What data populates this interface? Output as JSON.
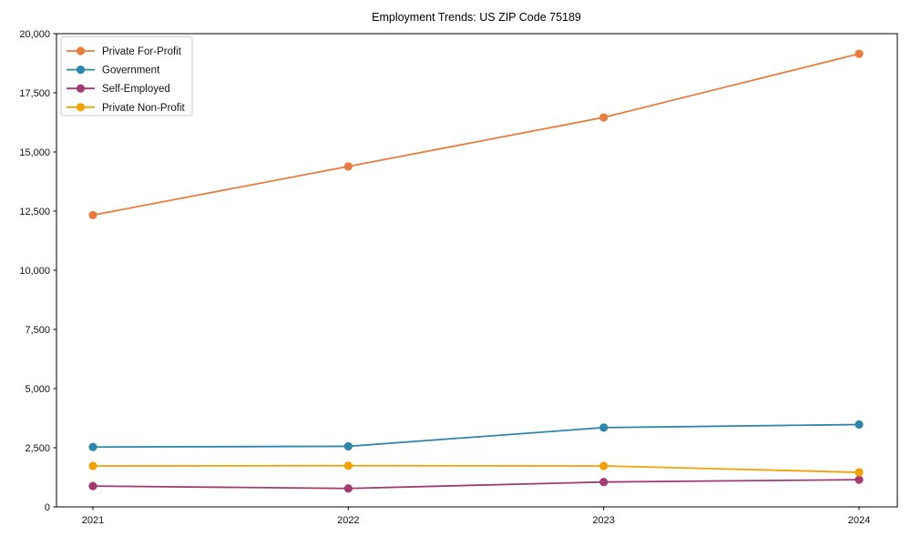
{
  "figure": {
    "background": "#ffffff",
    "spine_color": "#000000",
    "tick_label_color": "#111111"
  },
  "chart_data": {
    "type": "line",
    "title": "Employment Trends: US ZIP Code 75189",
    "xlabel": "",
    "ylabel": "",
    "x": [
      "2021",
      "2022",
      "2023",
      "2024"
    ],
    "series": [
      {
        "name": "Private For-Profit",
        "color": "#e87c3e",
        "values": [
          12330,
          14390,
          16460,
          19150
        ]
      },
      {
        "name": "Government",
        "color": "#2e86ab",
        "values": [
          2530,
          2560,
          3350,
          3480
        ]
      },
      {
        "name": "Self-Employed",
        "color": "#a23b72",
        "values": [
          880,
          780,
          1050,
          1150
        ]
      },
      {
        "name": "Private Non-Profit",
        "color": "#f2a104",
        "values": [
          1730,
          1740,
          1730,
          1460
        ]
      }
    ],
    "ylim": [
      0,
      20000
    ],
    "yticks": [
      0,
      2500,
      5000,
      7500,
      10000,
      12500,
      15000,
      17500,
      20000
    ],
    "ytick_labels": [
      "0",
      "2,500",
      "5,000",
      "7,500",
      "10,000",
      "12,500",
      "15,000",
      "17,500",
      "20,000"
    ],
    "grid": false,
    "marker": "o",
    "legend_position": "upper left",
    "legend_border_color": "#cccccc",
    "legend_background": "#ffffff"
  }
}
